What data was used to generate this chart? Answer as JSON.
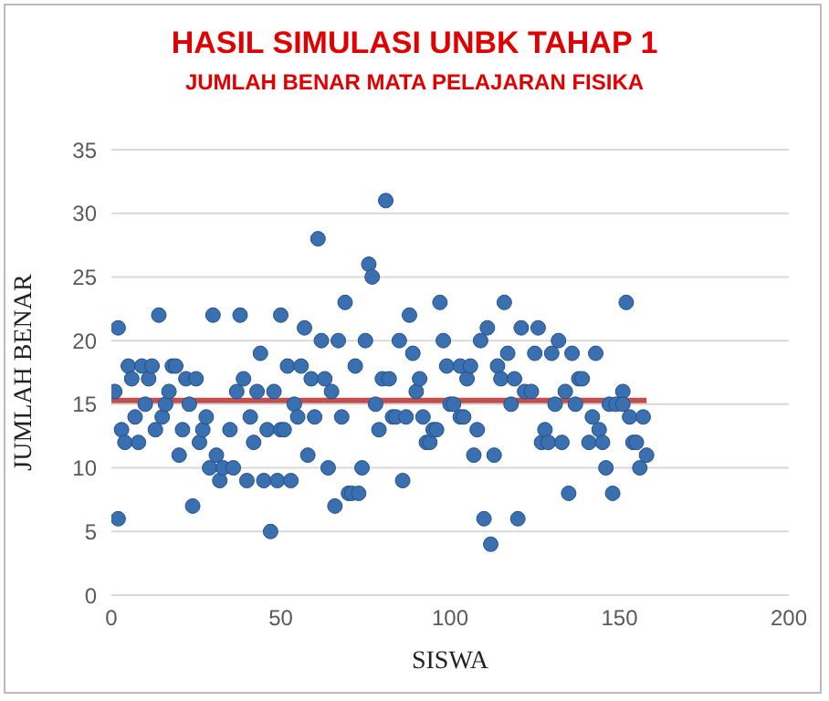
{
  "chart_data": {
    "type": "scatter",
    "title": "HASIL SIMULASI UNBK TAHAP 1",
    "subtitle": "JUMLAH BENAR MATA PELAJARAN FISIKA",
    "xlabel": "SISWA",
    "ylabel": "JUMLAH BENAR",
    "x": [
      1,
      2,
      2,
      3,
      4,
      5,
      6,
      7,
      8,
      9,
      10,
      11,
      12,
      13,
      14,
      15,
      16,
      17,
      18,
      19,
      20,
      21,
      22,
      23,
      24,
      25,
      26,
      27,
      28,
      29,
      30,
      31,
      32,
      33,
      35,
      36,
      37,
      38,
      39,
      40,
      41,
      42,
      43,
      44,
      45,
      46,
      47,
      48,
      49,
      50,
      50,
      51,
      52,
      53,
      54,
      55,
      56,
      57,
      58,
      59,
      60,
      61,
      62,
      63,
      64,
      65,
      66,
      67,
      68,
      69,
      70,
      71,
      72,
      73,
      74,
      75,
      76,
      77,
      78,
      79,
      80,
      81,
      82,
      83,
      84,
      85,
      86,
      87,
      88,
      89,
      90,
      91,
      92,
      93,
      94,
      95,
      96,
      97,
      98,
      99,
      100,
      101,
      103,
      103,
      104,
      105,
      106,
      107,
      108,
      109,
      110,
      111,
      112,
      113,
      114,
      115,
      116,
      117,
      118,
      119,
      120,
      121,
      122,
      124,
      125,
      126,
      127,
      128,
      129,
      130,
      131,
      132,
      133,
      134,
      135,
      136,
      137,
      138,
      139,
      141,
      142,
      143,
      144,
      145,
      146,
      147,
      148,
      149,
      151,
      151,
      152,
      153,
      154,
      155,
      156,
      157,
      158
    ],
    "values": [
      16,
      21,
      6,
      13,
      12,
      18,
      17,
      14,
      12,
      18,
      15,
      17,
      18,
      13,
      22,
      14,
      15,
      16,
      18,
      18,
      11,
      13,
      17,
      15,
      7,
      17,
      12,
      13,
      14,
      10,
      22,
      11,
      9,
      10,
      13,
      10,
      16,
      22,
      17,
      9,
      14,
      12,
      16,
      19,
      9,
      13,
      5,
      16,
      9,
      22,
      13,
      13,
      18,
      9,
      15,
      14,
      18,
      21,
      11,
      17,
      14,
      28,
      20,
      17,
      10,
      16,
      7,
      20,
      14,
      23,
      8,
      8,
      18,
      8,
      10,
      20,
      26,
      25,
      15,
      13,
      17,
      31,
      17,
      14,
      14,
      20,
      9,
      14,
      22,
      19,
      16,
      17,
      14,
      12,
      12,
      13,
      13,
      23,
      20,
      18,
      15,
      15,
      18,
      14,
      14,
      17,
      18,
      11,
      13,
      20,
      6,
      21,
      4,
      11,
      18,
      17,
      23,
      19,
      15,
      17,
      6,
      21,
      16,
      16,
      19,
      21,
      12,
      13,
      12,
      19,
      15,
      20,
      12,
      16,
      8,
      19,
      15,
      17,
      17,
      12,
      14,
      19,
      13,
      12,
      10,
      15,
      8,
      15,
      16,
      15,
      23,
      14,
      12,
      12,
      10,
      14,
      11
    ],
    "color": "#3a6fb0",
    "marker": "circle",
    "xlim": [
      0,
      200
    ],
    "xticks": [
      0,
      50,
      100,
      150,
      200
    ],
    "ylim": [
      0,
      35
    ],
    "yticks": [
      0,
      5,
      10,
      15,
      20,
      25,
      30,
      35
    ],
    "grid": "y",
    "ref_lines": [
      {
        "axis": "y",
        "value": 15.3,
        "color": "#c0504d"
      }
    ]
  }
}
